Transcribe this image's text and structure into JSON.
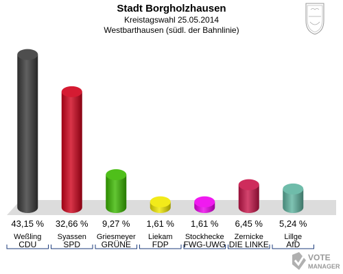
{
  "header": {
    "title": "Stadt Borgholzhausen",
    "subtitle": "Kreistagswahl 25.05.2014",
    "subtitle2": "Westbarthausen (südl. der Bahnlinie)"
  },
  "watermark": {
    "line1": "VOTE",
    "line2": "MANAGER"
  },
  "chart_data": {
    "type": "bar",
    "title": "Stadt Borgholzhausen",
    "categories": [
      "CDU",
      "SPD",
      "GRÜNE",
      "FDP",
      "FWG-UWG",
      "DIE LINKE",
      "AfD"
    ],
    "candidates": [
      "Weßling",
      "Syassen",
      "Griesmeyer",
      "Liekam",
      "Stockhecke",
      "Zernicke",
      "Lillge"
    ],
    "values": [
      43.15,
      32.66,
      9.27,
      1.61,
      1.61,
      6.45,
      5.24
    ],
    "value_labels": [
      "43,15 %",
      "32,66 %",
      "9,27 %",
      "1,61 %",
      "1,61 %",
      "6,45 %",
      "5,24 %"
    ],
    "colors": [
      "#3a3a3a",
      "#d0021b",
      "#3bb800",
      "#f0e800",
      "#ee00ee",
      "#c8154a",
      "#5fb4a0"
    ],
    "ylim": [
      0,
      45
    ],
    "grid": false,
    "legend": "none"
  }
}
